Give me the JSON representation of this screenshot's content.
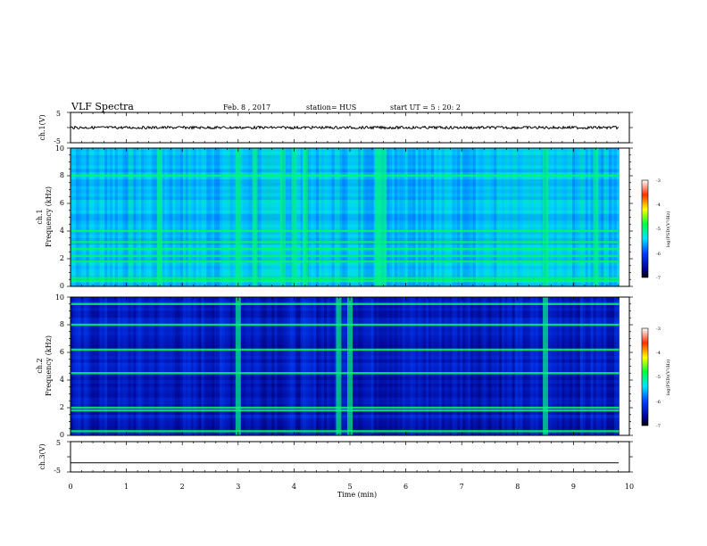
{
  "header": {
    "title": "VLF Spectra",
    "date": "Feb. 8 , 2017",
    "station": "station= HUS",
    "start": "start UT = 5 : 20: 2"
  },
  "panels": {
    "ch1_waveform": {
      "ylabel": "ch.1(V)",
      "yticks": [
        "5",
        "-5"
      ]
    },
    "ch1_spectrogram": {
      "ylabel_line1": "ch.1",
      "ylabel_line2": "Frequency (kHz)",
      "yticks": [
        "0",
        "2",
        "4",
        "6",
        "8",
        "10"
      ],
      "colorbar_label": "log(PSD)(V²/Hz)",
      "colorbar_ticks": [
        "-3",
        "-4",
        "-5",
        "-6",
        "-7"
      ]
    },
    "ch2_spectrogram": {
      "ylabel_line1": "ch.2",
      "ylabel_line2": "Frequency (kHz)",
      "yticks": [
        "0",
        "2",
        "4",
        "6",
        "8",
        "10"
      ],
      "colorbar_label": "log(PSD)(V²/Hz)",
      "colorbar_ticks": [
        "-3",
        "-4",
        "-5",
        "-6",
        "-7"
      ]
    },
    "ch3_waveform": {
      "ylabel": "ch.3(V)",
      "yticks": [
        "5",
        "-5"
      ]
    }
  },
  "xaxis": {
    "label": "Time (min)",
    "ticks": [
      "0",
      "1",
      "2",
      "3",
      "4",
      "5",
      "6",
      "7",
      "8",
      "9",
      "10"
    ]
  },
  "chart_data": [
    {
      "type": "line",
      "name": "ch1-waveform",
      "ylabel": "ch.1(V)",
      "xlim": [
        0,
        10
      ],
      "ylim": [
        -5,
        5
      ],
      "baseline_value": 0,
      "data_end_minute": 9.82
    },
    {
      "type": "heatmap",
      "name": "ch1-spectrogram",
      "ylabel": "ch.1 Frequency (kHz)",
      "xlim": [
        0,
        10
      ],
      "ylim": [
        0,
        10
      ],
      "colorbar_range": [
        -7,
        -3
      ],
      "colorbar_label": "log(PSD)(V²/Hz)",
      "data_end_minute": 9.82,
      "band_freqs_khz": [
        0.4,
        0.6,
        1.8,
        2.2,
        2.7,
        3.2,
        4.0,
        8.0
      ],
      "burst_minutes": [
        1.6,
        3.0,
        3.3,
        3.8,
        4.0,
        4.2,
        5.5,
        5.6,
        8.5,
        9.4
      ]
    },
    {
      "type": "heatmap",
      "name": "ch2-spectrogram",
      "ylabel": "ch.2 Frequency (kHz)",
      "xlim": [
        0,
        10
      ],
      "ylim": [
        0,
        10
      ],
      "colorbar_range": [
        -7,
        -3
      ],
      "colorbar_label": "log(PSD)(V²/Hz)",
      "data_end_minute": 9.82,
      "band_freqs_khz": [
        0.3,
        1.8,
        2.0,
        4.5,
        6.2,
        8.0,
        9.5
      ],
      "burst_minutes": [
        3.0,
        4.8,
        5.0,
        8.5
      ]
    },
    {
      "type": "line",
      "name": "ch3-waveform",
      "ylabel": "ch.3(V)",
      "xlim": [
        0,
        10
      ],
      "ylim": [
        -5,
        5
      ],
      "baseline_value": -2,
      "data_end_minute": 9.82
    }
  ]
}
